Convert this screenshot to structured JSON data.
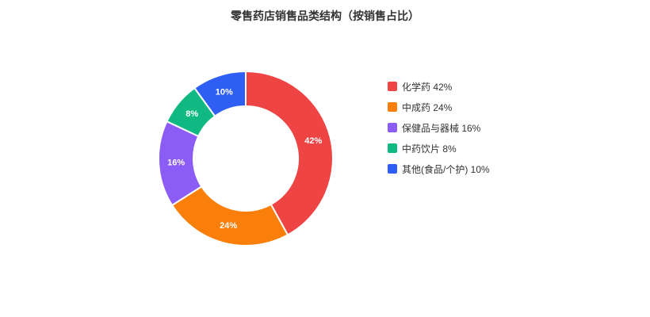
{
  "chart_data": {
    "type": "pie",
    "title": "零售药店销售品类结构（按销售占比）",
    "categories": [
      "化学药",
      "中成药",
      "保健品与器械",
      "中药饮片",
      "其他(食品/个护)"
    ],
    "values": [
      42,
      24,
      16,
      8,
      10
    ],
    "value_labels": [
      "42%",
      "24%",
      "16%",
      "8%",
      "10%"
    ],
    "legend_labels": [
      "化学药 42%",
      "中成药 24%",
      "保健品与器械 16%",
      "中药饮片 8%",
      "其他(食品/个护) 10%"
    ],
    "colors": [
      "#ef4444",
      "#f97f0a",
      "#8b5cf6",
      "#10b981",
      "#2f5ef5"
    ],
    "legend_position": "right",
    "donut": true
  }
}
